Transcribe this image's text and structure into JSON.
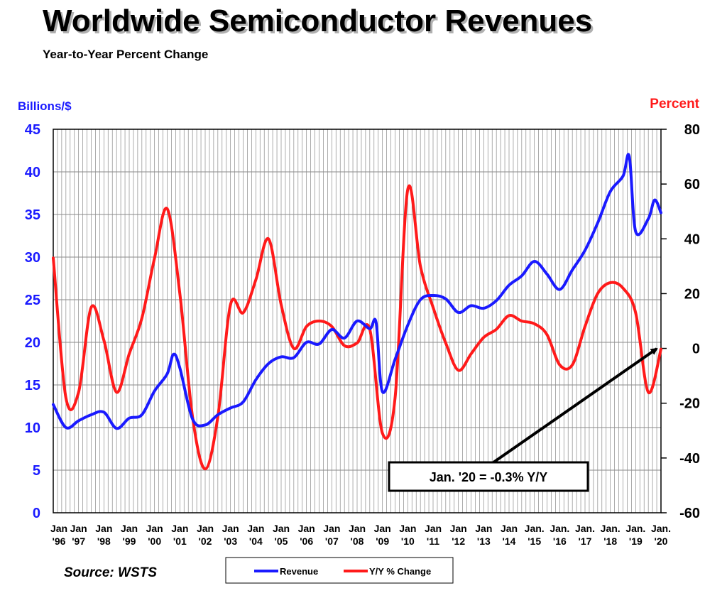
{
  "chart_data": {
    "type": "line",
    "title": "Worldwide Semiconductor Revenues",
    "subtitle": "Year-to-Year Percent Change",
    "y_left_label": "Billions/$",
    "y_right_label": "Percent",
    "y_left_ticks": [
      "0",
      "5",
      "10",
      "15",
      "20",
      "25",
      "30",
      "35",
      "40",
      "45"
    ],
    "y_right_ticks": [
      "-60",
      "-40",
      "-20",
      "0",
      "20",
      "40",
      "60",
      "80"
    ],
    "ylim_left": [
      0,
      45
    ],
    "ylim_right": [
      -60,
      80
    ],
    "x_ticks": [
      {
        "top": "Jan",
        "bottom": "'96"
      },
      {
        "top": "Jan",
        "bottom": "'97"
      },
      {
        "top": "Jan",
        "bottom": "'98"
      },
      {
        "top": "Jan",
        "bottom": "'99"
      },
      {
        "top": "Jan",
        "bottom": "'00"
      },
      {
        "top": "Jan",
        "bottom": "'01"
      },
      {
        "top": "Jan",
        "bottom": "'02"
      },
      {
        "top": "Jan",
        "bottom": "'03"
      },
      {
        "top": "Jan",
        "bottom": "'04"
      },
      {
        "top": "Jan",
        "bottom": "'05"
      },
      {
        "top": "Jan",
        "bottom": "'06"
      },
      {
        "top": "Jan",
        "bottom": "'07"
      },
      {
        "top": "Jan",
        "bottom": "'08"
      },
      {
        "top": "Jan",
        "bottom": "'09"
      },
      {
        "top": "Jan",
        "bottom": "'10"
      },
      {
        "top": "Jan",
        "bottom": "'11"
      },
      {
        "top": "Jan",
        "bottom": "'12"
      },
      {
        "top": "Jan",
        "bottom": "'13"
      },
      {
        "top": "Jan",
        "bottom": "'14"
      },
      {
        "top": "Jan.",
        "bottom": "'15"
      },
      {
        "top": "Jan.",
        "bottom": "'16"
      },
      {
        "top": "Jan.",
        "bottom": "'17"
      },
      {
        "top": "Jan.",
        "bottom": "'18"
      },
      {
        "top": "Jan.",
        "bottom": "'19"
      },
      {
        "top": "Jan.",
        "bottom": "'20"
      }
    ],
    "grid": true,
    "annotation": "Jan. '20 = -0.3% Y/Y",
    "source": "Source: WSTS",
    "legend_position": "bottom-center",
    "series": [
      {
        "name": "Revenue",
        "color": "#1a1aff",
        "axis": "left",
        "points": [
          [
            "Jan 1996",
            12.7
          ],
          [
            "Jul 1996",
            10.0
          ],
          [
            "Jan 1997",
            10.8
          ],
          [
            "Jul 1997",
            11.5
          ],
          [
            "Jan 1998",
            11.8
          ],
          [
            "Jul 1998",
            9.9
          ],
          [
            "Jan 1999",
            11.1
          ],
          [
            "Jul 1999",
            11.5
          ],
          [
            "Jan 2000",
            14.3
          ],
          [
            "Jul 2000",
            16.3
          ],
          [
            "Oct 2000",
            18.6
          ],
          [
            "Jan 2001",
            17.0
          ],
          [
            "Jul 2001",
            11.0
          ],
          [
            "Jan 2002",
            10.3
          ],
          [
            "Jul 2002",
            11.5
          ],
          [
            "Jan 2003",
            12.3
          ],
          [
            "Jul 2003",
            13.0
          ],
          [
            "Jan 2004",
            15.6
          ],
          [
            "Jul 2004",
            17.5
          ],
          [
            "Jan 2005",
            18.3
          ],
          [
            "Jul 2005",
            18.2
          ],
          [
            "Jan 2006",
            20.0
          ],
          [
            "Jul 2006",
            19.8
          ],
          [
            "Jan 2007",
            21.5
          ],
          [
            "Jul 2007",
            20.5
          ],
          [
            "Jan 2008",
            22.5
          ],
          [
            "Jul 2008",
            21.6
          ],
          [
            "Oct 2008",
            22.3
          ],
          [
            "Jan 2009",
            14.2
          ],
          [
            "Jul 2009",
            18.0
          ],
          [
            "Jan 2010",
            22.0
          ],
          [
            "Jul 2010",
            25.0
          ],
          [
            "Jan 2011",
            25.5
          ],
          [
            "Jul 2011",
            25.1
          ],
          [
            "Jan 2012",
            23.5
          ],
          [
            "Jul 2012",
            24.3
          ],
          [
            "Jan 2013",
            24.0
          ],
          [
            "Jul 2013",
            24.9
          ],
          [
            "Jan 2014",
            26.7
          ],
          [
            "Jul 2014",
            27.8
          ],
          [
            "Jan 2015",
            29.5
          ],
          [
            "Jul 2015",
            28.0
          ],
          [
            "Jan 2016",
            26.2
          ],
          [
            "Jul 2016",
            28.5
          ],
          [
            "Jan 2017",
            30.8
          ],
          [
            "Jul 2017",
            34.0
          ],
          [
            "Jan 2018",
            37.7
          ],
          [
            "Jul 2018",
            39.5
          ],
          [
            "Oct 2018",
            41.8
          ],
          [
            "Jan 2019",
            33.0
          ],
          [
            "Jul 2019",
            34.5
          ],
          [
            "Oct 2019",
            36.7
          ],
          [
            "Jan 2020",
            35.2
          ]
        ]
      },
      {
        "name": "Y/Y % Change",
        "color": "#ff1a1a",
        "axis": "right",
        "points": [
          [
            "Jan 1996",
            33
          ],
          [
            "Jul 1996",
            -18
          ],
          [
            "Jan 1997",
            -16
          ],
          [
            "Jul 1997",
            15
          ],
          [
            "Jan 1998",
            3
          ],
          [
            "Jul 1998",
            -16
          ],
          [
            "Jan 1999",
            -2
          ],
          [
            "Jul 1999",
            11
          ],
          [
            "Jan 2000",
            33
          ],
          [
            "Jul 2000",
            51
          ],
          [
            "Jan 2001",
            20
          ],
          [
            "Jul 2001",
            -25
          ],
          [
            "Jan 2002",
            -44
          ],
          [
            "Jul 2002",
            -25
          ],
          [
            "Jan 2003",
            16
          ],
          [
            "Jul 2003",
            13
          ],
          [
            "Jan 2004",
            25
          ],
          [
            "Jul 2004",
            40
          ],
          [
            "Jan 2005",
            16
          ],
          [
            "Jul 2005",
            0
          ],
          [
            "Jan 2006",
            8
          ],
          [
            "Jul 2006",
            10
          ],
          [
            "Jan 2007",
            8
          ],
          [
            "Jul 2007",
            1
          ],
          [
            "Jan 2008",
            2
          ],
          [
            "Jul 2008",
            7
          ],
          [
            "Jan 2009",
            -31
          ],
          [
            "Jul 2009",
            -18
          ],
          [
            "Jan 2010",
            58
          ],
          [
            "Jul 2010",
            30
          ],
          [
            "Jan 2011",
            15
          ],
          [
            "Jul 2011",
            2
          ],
          [
            "Jan 2012",
            -8
          ],
          [
            "Jul 2012",
            -2
          ],
          [
            "Jan 2013",
            4
          ],
          [
            "Jul 2013",
            7
          ],
          [
            "Jan 2014",
            12
          ],
          [
            "Jul 2014",
            10
          ],
          [
            "Jan 2015",
            9
          ],
          [
            "Jul 2015",
            5
          ],
          [
            "Jan 2016",
            -6
          ],
          [
            "Jul 2016",
            -6
          ],
          [
            "Jan 2017",
            8
          ],
          [
            "Jul 2017",
            20
          ],
          [
            "Jan 2018",
            24
          ],
          [
            "Jul 2018",
            22
          ],
          [
            "Jan 2019",
            13
          ],
          [
            "Jul 2019",
            -16
          ],
          [
            "Jan 2020",
            -0.3
          ]
        ]
      }
    ]
  }
}
